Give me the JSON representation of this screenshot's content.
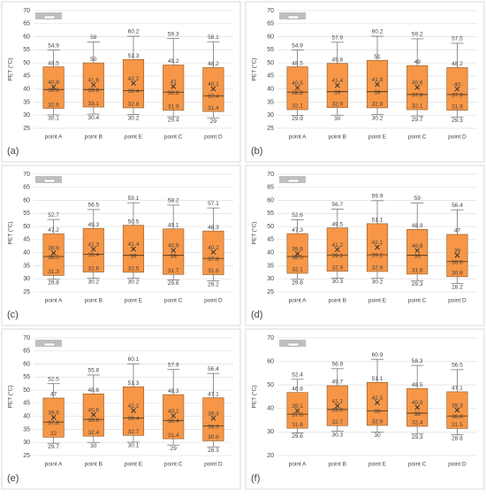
{
  "chart_data": [
    {
      "type": "box",
      "panel_label": "(a)",
      "y_label": "PET (°C)",
      "categories": [
        "point A",
        "point B",
        "point E",
        "point C",
        "point D"
      ],
      "max": [
        54.9,
        58.0,
        60.2,
        59.3,
        58.1
      ],
      "q3": [
        48.5,
        50.0,
        51.3,
        49.2,
        48.2
      ],
      "mean": [
        40.8,
        41.6,
        42.2,
        41.0,
        40.1
      ],
      "median": [
        39.8,
        39.8,
        39.4,
        38.8,
        37.4
      ],
      "q1": [
        32.6,
        33.1,
        32.8,
        31.9,
        31.4
      ],
      "min": [
        30.1,
        30.4,
        30.2,
        29.4,
        29.0
      ],
      "ylim": [
        25,
        70
      ],
      "yticks": [
        25,
        30,
        35,
        40,
        45,
        50,
        55,
        60,
        65,
        70
      ],
      "color": "#f79646",
      "grid": true
    },
    {
      "type": "box",
      "panel_label": "(b)",
      "y_label": "PET (°C)",
      "categories": [
        "point A",
        "point B",
        "point E",
        "point C",
        "point D"
      ],
      "max": [
        54.9,
        57.9,
        60.2,
        59.2,
        57.5
      ],
      "q3": [
        48.5,
        49.8,
        51.0,
        49.0,
        48.2
      ],
      "mean": [
        40.5,
        41.4,
        41.8,
        40.6,
        40.0
      ],
      "median": [
        38.8,
        39.0,
        39.0,
        37.9,
        37.9
      ],
      "q1": [
        32.1,
        32.9,
        32.8,
        32.1,
        31.9
      ],
      "min": [
        29.9,
        30.0,
        30.2,
        29.7,
        29.3
      ],
      "ylim": [
        25,
        70
      ],
      "yticks": [
        25,
        30,
        35,
        40,
        45,
        50,
        55,
        60,
        65,
        70
      ],
      "color": "#f79646",
      "grid": true
    },
    {
      "type": "box",
      "panel_label": "(c)",
      "y_label": "PET (°C)",
      "categories": [
        "point A",
        "point B",
        "point E",
        "point C",
        "point D"
      ],
      "max": [
        52.7,
        56.5,
        59.1,
        58.2,
        57.1
      ],
      "q3": [
        47.2,
        49.3,
        50.5,
        49.1,
        48.3
      ],
      "mean": [
        39.9,
        41.3,
        41.4,
        40.9,
        40.2
      ],
      "median": [
        38.5,
        39.4,
        39.0,
        39.0,
        37.8
      ],
      "q1": [
        31.3,
        32.6,
        32.5,
        31.7,
        31.6
      ],
      "min": [
        29.8,
        30.2,
        30.2,
        29.6,
        29.2
      ],
      "ylim": [
        25,
        70
      ],
      "yticks": [
        25,
        30,
        35,
        40,
        45,
        50,
        55,
        60,
        65,
        70
      ],
      "color": "#f79646",
      "grid": true
    },
    {
      "type": "box",
      "panel_label": "(d)",
      "y_label": "PET (°C)",
      "categories": [
        "point A",
        "point B",
        "point E",
        "point C",
        "point D"
      ],
      "max": [
        52.6,
        56.7,
        59.9,
        59.0,
        56.4
      ],
      "q3": [
        47.3,
        49.5,
        51.1,
        48.9,
        47.0
      ],
      "mean": [
        39.6,
        41.2,
        42.1,
        40.8,
        39.0
      ],
      "median": [
        38.5,
        39.1,
        39.2,
        39.0,
        36.6
      ],
      "q1": [
        32.1,
        32.9,
        32.8,
        31.8,
        30.8
      ],
      "min": [
        29.8,
        30.3,
        30.2,
        29.3,
        28.2
      ],
      "ylim": [
        25,
        70
      ],
      "yticks": [
        25,
        30,
        35,
        40,
        45,
        50,
        55,
        60,
        65,
        70
      ],
      "color": "#f79646",
      "grid": true
    },
    {
      "type": "box",
      "panel_label": "(e)",
      "y_label": "PET (°C)",
      "categories": [
        "point A",
        "point B",
        "point E",
        "point C",
        "point D"
      ],
      "max": [
        52.5,
        55.8,
        60.1,
        57.9,
        56.4
      ],
      "q3": [
        47.0,
        48.6,
        51.3,
        48.3,
        47.1
      ],
      "mean": [
        39.6,
        40.6,
        42.2,
        40.2,
        39.3
      ],
      "median": [
        37.8,
        38.8,
        39.4,
        38.4,
        36.3
      ],
      "q1": [
        32.0,
        32.4,
        32.7,
        31.4,
        30.6
      ],
      "min": [
        29.7,
        30.0,
        30.1,
        29.0,
        28.3
      ],
      "ylim": [
        25,
        70
      ],
      "yticks": [
        25,
        30,
        35,
        40,
        45,
        50,
        55,
        60,
        65,
        70
      ],
      "color": "#f79646",
      "grid": true
    },
    {
      "type": "box",
      "panel_label": "(f)",
      "y_label": "PET (°C)",
      "categories": [
        "point A",
        "point B",
        "point E",
        "point C",
        "point D"
      ],
      "max": [
        52.4,
        56.9,
        60.9,
        58.3,
        56.5
      ],
      "q3": [
        46.8,
        49.7,
        51.1,
        48.5,
        47.1
      ],
      "mean": [
        39.1,
        41.1,
        42.5,
        40.5,
        39.3
      ],
      "median": [
        37.6,
        39.6,
        39.0,
        38.0,
        36.8
      ],
      "q1": [
        31.6,
        32.7,
        32.8,
        32.4,
        31.5
      ],
      "min": [
        29.6,
        30.3,
        30.0,
        29.3,
        28.8
      ],
      "ylim": [
        20,
        70
      ],
      "yticks": [
        20,
        30,
        40,
        50,
        60,
        70
      ],
      "color": "#f79646",
      "grid": true
    }
  ]
}
